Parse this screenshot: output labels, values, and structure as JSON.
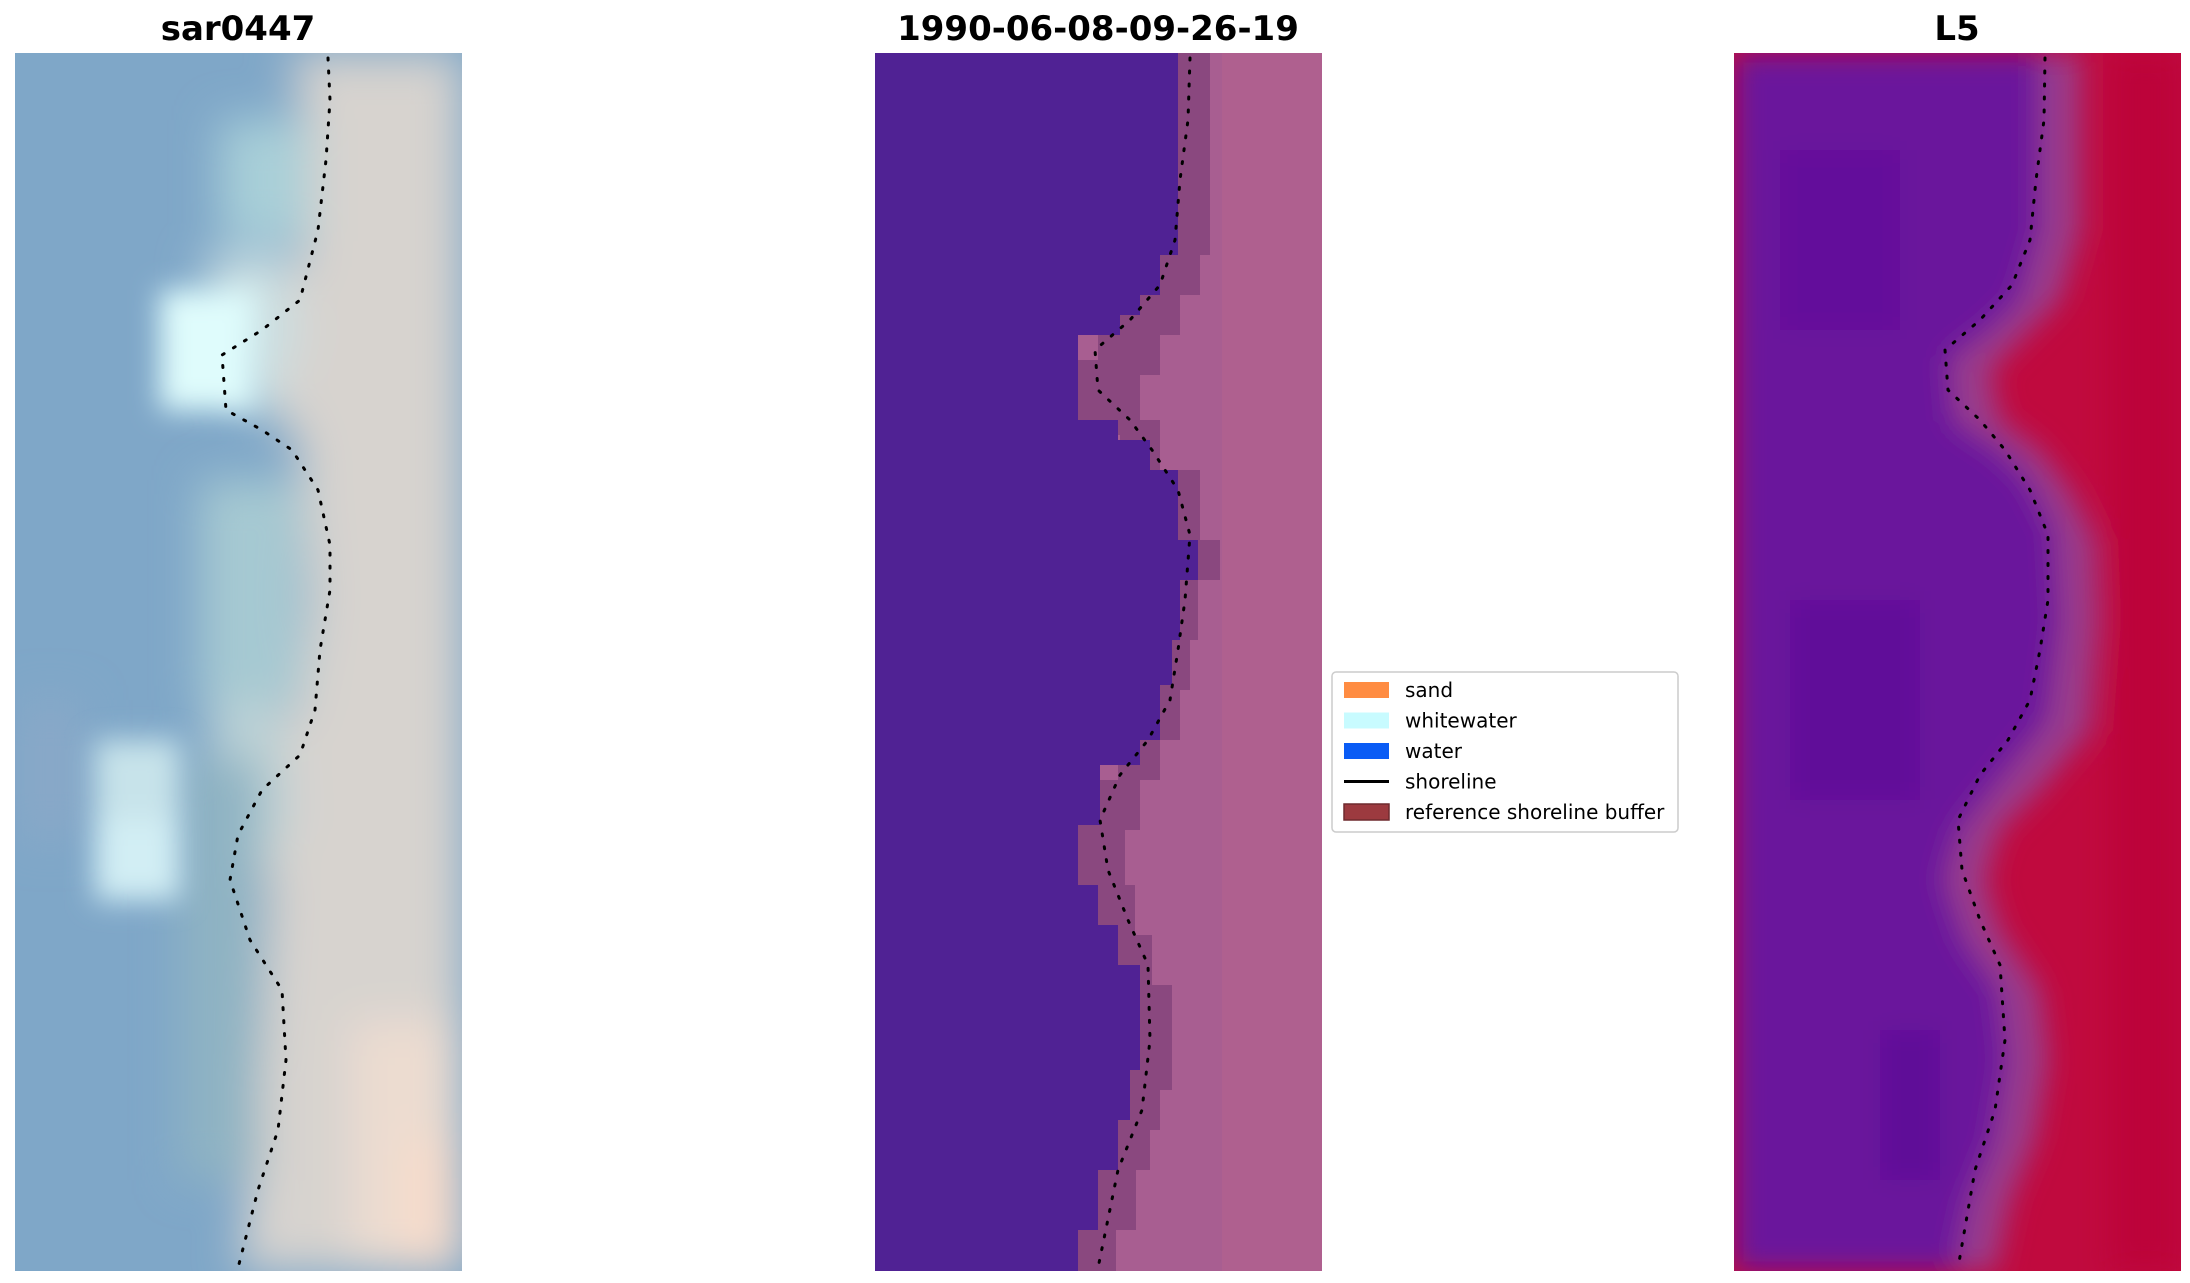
{
  "panels": [
    {
      "name": "rgb-panel",
      "title": "sar0447"
    },
    {
      "name": "classified-panel",
      "title": "1990-06-08-09-26-19"
    },
    {
      "name": "index-panel",
      "title": "L5"
    }
  ],
  "legend": {
    "items": [
      {
        "label": "sand",
        "color": "#ff8c42",
        "kind": "patch"
      },
      {
        "label": "whitewater",
        "color": "#c8fbff",
        "kind": "patch"
      },
      {
        "label": "water",
        "color": "#0a5cf5",
        "kind": "patch"
      },
      {
        "label": "shoreline",
        "color": "#000000",
        "kind": "line"
      },
      {
        "label": "reference shoreline buffer",
        "color": "#9c3a3f",
        "kind": "patch"
      }
    ]
  },
  "colors": {
    "rgb_water": "#7fa7c8",
    "rgb_whitewater": "#dffcfc",
    "rgb_sand": "#d9d2cc",
    "classified_water": "#502294",
    "classified_land": "#a85e91",
    "classified_buffer": "#8a487f",
    "index_water": "#6a139c",
    "index_land": "#c00a3e"
  }
}
